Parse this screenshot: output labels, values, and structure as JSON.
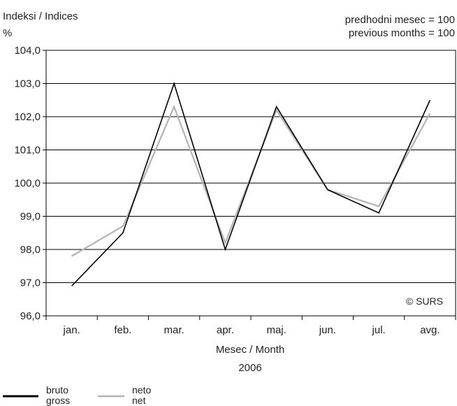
{
  "chart_data": {
    "type": "line",
    "title": "Indeksi / Indices",
    "ylabel": "%",
    "note_lines": [
      "predhodni mesec = 100",
      "previous months = 100"
    ],
    "xlabel": "Mesec / Month",
    "xsublabel": "2006",
    "copyright": "© SURS",
    "categories": [
      "jan.",
      "feb.",
      "mar.",
      "apr.",
      "maj.",
      "jun.",
      "jul.",
      "avg."
    ],
    "ylim": [
      96.0,
      104.0
    ],
    "yticks": [
      96.0,
      97.0,
      98.0,
      99.0,
      100.0,
      101.0,
      102.0,
      103.0,
      104.0
    ],
    "ytick_labels": [
      "96,0",
      "97,0",
      "98,0",
      "99,0",
      "100,0",
      "101,0",
      "102,0",
      "103,0",
      "104,0"
    ],
    "grid": true,
    "legend_position": "bottom-left",
    "series": [
      {
        "name": "bruto gross",
        "legend_lines": [
          "bruto",
          "gross"
        ],
        "color": "#000000",
        "values": [
          96.9,
          98.5,
          103.0,
          98.0,
          102.3,
          99.8,
          99.1,
          102.5
        ]
      },
      {
        "name": "neto net",
        "legend_lines": [
          "neto",
          "net"
        ],
        "color": "#b3b3b3",
        "values": [
          97.8,
          98.7,
          102.3,
          98.2,
          102.2,
          99.8,
          99.3,
          102.1
        ]
      }
    ]
  }
}
